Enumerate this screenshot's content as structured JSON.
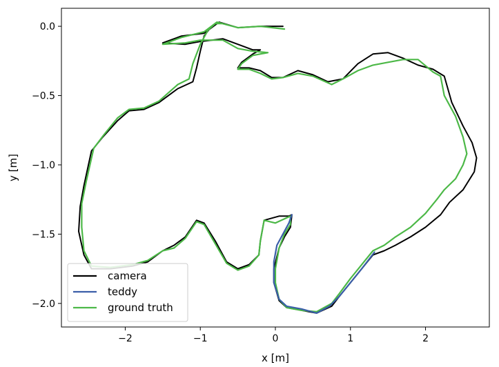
{
  "chart_data": {
    "type": "line",
    "xlabel": "x [m]",
    "ylabel": "y [m]",
    "xlim": [
      -2.85,
      2.85
    ],
    "ylim": [
      -2.17,
      0.13
    ],
    "xticks": [
      -2,
      -1,
      0,
      1,
      2
    ],
    "yticks": [
      0.0,
      -0.5,
      -1.0,
      -1.5,
      -2.0
    ],
    "xtick_labels": [
      "−2",
      "−1",
      "0",
      "1",
      "2"
    ],
    "ytick_labels": [
      "0.0",
      "−0.5",
      "−1.0",
      "−1.5",
      "−2.0"
    ],
    "grid": false,
    "legend_position": "lower-left",
    "series": [
      {
        "name": "camera",
        "color": "#000000",
        "points": [
          [
            0.1,
            0.0
          ],
          [
            -0.2,
            0.0
          ],
          [
            -0.5,
            -0.01
          ],
          [
            -0.75,
            0.03
          ],
          [
            -0.95,
            -0.05
          ],
          [
            -1.25,
            -0.07
          ],
          [
            -1.5,
            -0.12
          ],
          [
            -1.2,
            -0.13
          ],
          [
            -1.0,
            -0.11
          ],
          [
            -0.7,
            -0.09
          ],
          [
            -0.5,
            -0.13
          ],
          [
            -0.3,
            -0.17
          ],
          [
            -0.2,
            -0.17
          ],
          [
            -0.3,
            -0.2
          ],
          [
            -0.45,
            -0.26
          ],
          [
            -0.5,
            -0.3
          ],
          [
            -0.35,
            -0.3
          ],
          [
            -0.2,
            -0.32
          ],
          [
            -0.05,
            -0.37
          ],
          [
            0.1,
            -0.37
          ],
          [
            0.3,
            -0.32
          ],
          [
            0.5,
            -0.35
          ],
          [
            0.7,
            -0.4
          ],
          [
            0.9,
            -0.38
          ],
          [
            1.1,
            -0.27
          ],
          [
            1.3,
            -0.2
          ],
          [
            1.5,
            -0.19
          ],
          [
            1.7,
            -0.23
          ],
          [
            1.9,
            -0.28
          ],
          [
            2.1,
            -0.31
          ],
          [
            2.25,
            -0.36
          ],
          [
            2.35,
            -0.55
          ],
          [
            2.5,
            -0.72
          ],
          [
            2.62,
            -0.84
          ],
          [
            2.68,
            -0.95
          ],
          [
            2.65,
            -1.05
          ],
          [
            2.5,
            -1.18
          ],
          [
            2.32,
            -1.27
          ],
          [
            2.2,
            -1.36
          ],
          [
            2.0,
            -1.45
          ],
          [
            1.8,
            -1.52
          ],
          [
            1.6,
            -1.58
          ],
          [
            1.45,
            -1.62
          ],
          [
            1.3,
            -1.65
          ],
          [
            1.0,
            -1.85
          ],
          [
            0.85,
            -1.95
          ],
          [
            0.75,
            -2.02
          ],
          [
            0.55,
            -2.07
          ],
          [
            0.35,
            -2.05
          ],
          [
            0.15,
            -2.03
          ],
          [
            0.05,
            -1.98
          ],
          [
            -0.02,
            -1.85
          ],
          [
            -0.02,
            -1.75
          ],
          [
            0.05,
            -1.6
          ],
          [
            0.12,
            -1.52
          ],
          [
            0.2,
            -1.45
          ],
          [
            0.22,
            -1.36
          ],
          [
            0.18,
            -1.37
          ],
          [
            0.05,
            -1.37
          ],
          [
            -0.15,
            -1.4
          ],
          [
            -0.2,
            -1.55
          ],
          [
            -0.22,
            -1.65
          ],
          [
            -0.35,
            -1.72
          ],
          [
            -0.5,
            -1.75
          ],
          [
            -0.65,
            -1.7
          ],
          [
            -0.8,
            -1.55
          ],
          [
            -0.95,
            -1.42
          ],
          [
            -1.05,
            -1.4
          ],
          [
            -1.2,
            -1.52
          ],
          [
            -1.35,
            -1.58
          ],
          [
            -1.5,
            -1.62
          ],
          [
            -1.7,
            -1.7
          ],
          [
            -1.9,
            -1.73
          ],
          [
            -2.2,
            -1.75
          ],
          [
            -2.45,
            -1.75
          ],
          [
            -2.55,
            -1.65
          ],
          [
            -2.62,
            -1.48
          ],
          [
            -2.6,
            -1.3
          ],
          [
            -2.55,
            -1.15
          ],
          [
            -2.45,
            -0.9
          ],
          [
            -2.3,
            -0.8
          ],
          [
            -2.1,
            -0.68
          ],
          [
            -1.95,
            -0.61
          ],
          [
            -1.75,
            -0.6
          ],
          [
            -1.55,
            -0.55
          ],
          [
            -1.3,
            -0.45
          ],
          [
            -1.1,
            -0.4
          ],
          [
            -1.05,
            -0.3
          ],
          [
            -1.0,
            -0.18
          ],
          [
            -0.95,
            -0.07
          ],
          [
            -0.85,
            0.0
          ],
          [
            -0.75,
            0.03
          ]
        ]
      },
      {
        "name": "teddy",
        "color": "#3a5ea8",
        "points": [
          [
            0.22,
            -1.36
          ],
          [
            0.18,
            -1.42
          ],
          [
            0.1,
            -1.5
          ],
          [
            0.02,
            -1.58
          ],
          [
            -0.02,
            -1.7
          ],
          [
            -0.02,
            -1.85
          ],
          [
            0.05,
            -1.97
          ],
          [
            0.15,
            -2.02
          ],
          [
            0.35,
            -2.04
          ],
          [
            0.55,
            -2.07
          ],
          [
            0.72,
            -2.02
          ],
          [
            0.85,
            -1.95
          ],
          [
            1.0,
            -1.85
          ],
          [
            1.15,
            -1.75
          ],
          [
            1.32,
            -1.63
          ]
        ]
      },
      {
        "name": "ground truth",
        "color": "#4cb847",
        "points": [
          [
            0.12,
            -0.02
          ],
          [
            -0.2,
            0.0
          ],
          [
            -0.5,
            -0.01
          ],
          [
            -0.78,
            0.03
          ],
          [
            -0.95,
            -0.04
          ],
          [
            -1.25,
            -0.08
          ],
          [
            -1.5,
            -0.13
          ],
          [
            -1.2,
            -0.12
          ],
          [
            -1.0,
            -0.1
          ],
          [
            -0.7,
            -0.1
          ],
          [
            -0.5,
            -0.16
          ],
          [
            -0.3,
            -0.18
          ],
          [
            -0.1,
            -0.19
          ],
          [
            -0.3,
            -0.21
          ],
          [
            -0.45,
            -0.27
          ],
          [
            -0.5,
            -0.31
          ],
          [
            -0.35,
            -0.31
          ],
          [
            -0.2,
            -0.34
          ],
          [
            -0.05,
            -0.38
          ],
          [
            0.1,
            -0.37
          ],
          [
            0.3,
            -0.34
          ],
          [
            0.5,
            -0.36
          ],
          [
            0.75,
            -0.42
          ],
          [
            0.9,
            -0.38
          ],
          [
            1.1,
            -0.32
          ],
          [
            1.3,
            -0.28
          ],
          [
            1.5,
            -0.26
          ],
          [
            1.7,
            -0.24
          ],
          [
            1.9,
            -0.24
          ],
          [
            2.1,
            -0.33
          ],
          [
            2.2,
            -0.36
          ],
          [
            2.25,
            -0.5
          ],
          [
            2.4,
            -0.65
          ],
          [
            2.5,
            -0.8
          ],
          [
            2.55,
            -0.92
          ],
          [
            2.5,
            -1.0
          ],
          [
            2.4,
            -1.1
          ],
          [
            2.25,
            -1.18
          ],
          [
            2.15,
            -1.25
          ],
          [
            2.0,
            -1.35
          ],
          [
            1.8,
            -1.45
          ],
          [
            1.6,
            -1.52
          ],
          [
            1.45,
            -1.58
          ],
          [
            1.3,
            -1.62
          ],
          [
            1.0,
            -1.82
          ],
          [
            0.85,
            -1.93
          ],
          [
            0.75,
            -2.0
          ],
          [
            0.55,
            -2.06
          ],
          [
            0.35,
            -2.05
          ],
          [
            0.15,
            -2.03
          ],
          [
            0.05,
            -1.97
          ],
          [
            0.0,
            -1.85
          ],
          [
            0.0,
            -1.75
          ],
          [
            0.05,
            -1.6
          ],
          [
            0.12,
            -1.5
          ],
          [
            0.2,
            -1.43
          ],
          [
            0.2,
            -1.37
          ],
          [
            0.12,
            -1.39
          ],
          [
            0.0,
            -1.42
          ],
          [
            -0.15,
            -1.4
          ],
          [
            -0.2,
            -1.55
          ],
          [
            -0.22,
            -1.65
          ],
          [
            -0.35,
            -1.73
          ],
          [
            -0.5,
            -1.76
          ],
          [
            -0.65,
            -1.71
          ],
          [
            -0.8,
            -1.57
          ],
          [
            -0.95,
            -1.43
          ],
          [
            -1.05,
            -1.41
          ],
          [
            -1.2,
            -1.53
          ],
          [
            -1.35,
            -1.6
          ],
          [
            -1.5,
            -1.62
          ],
          [
            -1.7,
            -1.69
          ],
          [
            -1.9,
            -1.72
          ],
          [
            -2.2,
            -1.74
          ],
          [
            -2.45,
            -1.73
          ],
          [
            -2.55,
            -1.62
          ],
          [
            -2.58,
            -1.45
          ],
          [
            -2.58,
            -1.28
          ],
          [
            -2.52,
            -1.12
          ],
          [
            -2.42,
            -0.88
          ],
          [
            -2.28,
            -0.78
          ],
          [
            -2.1,
            -0.66
          ],
          [
            -1.95,
            -0.6
          ],
          [
            -1.75,
            -0.59
          ],
          [
            -1.55,
            -0.54
          ],
          [
            -1.3,
            -0.42
          ],
          [
            -1.15,
            -0.38
          ],
          [
            -1.1,
            -0.27
          ],
          [
            -1.0,
            -0.13
          ],
          [
            -0.9,
            -0.03
          ],
          [
            -0.8,
            0.02
          ],
          [
            -0.72,
            0.02
          ]
        ]
      }
    ]
  }
}
